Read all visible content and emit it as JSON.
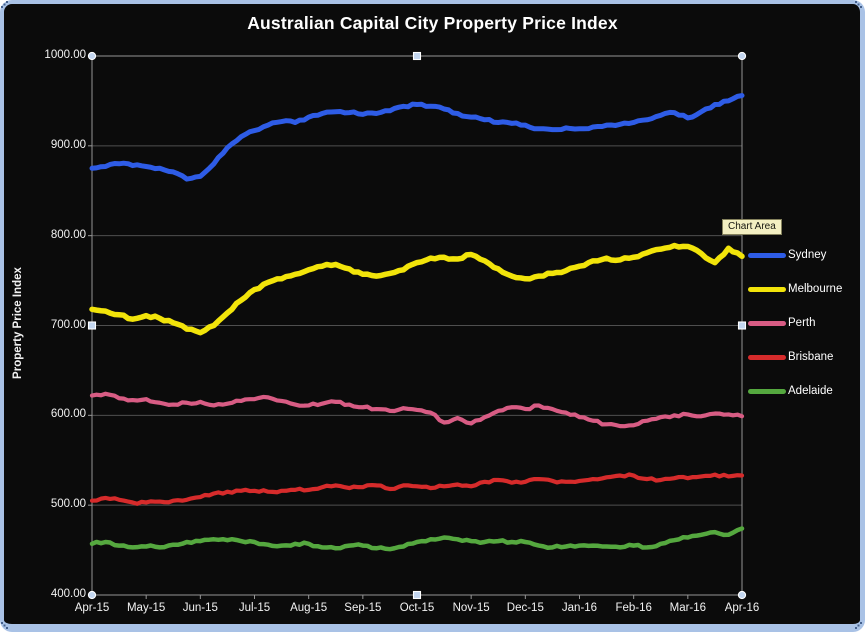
{
  "tooltip": {
    "text": "Chart Area"
  },
  "frame": {
    "border_color": "#a9c2e6",
    "background": "#0b0b0b",
    "handle_fill": "#c3d6f0",
    "handle_stroke": "#ffffff",
    "grid_color": "#4f4f4f",
    "axis_color": "#969696",
    "text_color": "#f2f2f2"
  },
  "chart_data": {
    "type": "line",
    "title": "Australian Capital City Property Price Index",
    "ylabel": "Property Price Index",
    "xlabel": "",
    "ylim": [
      400,
      1000
    ],
    "ytick_step": 100,
    "ytick_labels": [
      "1000.00",
      "900.00",
      "800.00",
      "700.00",
      "600.00",
      "500.00",
      "400.00"
    ],
    "x_categories": [
      "Apr-15",
      "May-15",
      "Jun-15",
      "Jul-15",
      "Aug-15",
      "Sep-15",
      "Oct-15",
      "Nov-15",
      "Dec-15",
      "Jan-16",
      "Feb-16",
      "Mar-16",
      "Apr-16"
    ],
    "points_per_month": 4,
    "grid": true,
    "legend_position": "right",
    "series": [
      {
        "name": "Sydney",
        "color": "#2e5ce6",
        "width": 5,
        "values": [
          875,
          877,
          880,
          878,
          877,
          875,
          871,
          863,
          866,
          880,
          898,
          910,
          917,
          923,
          927,
          926,
          932,
          936,
          938,
          937,
          935,
          936,
          939,
          944,
          946,
          944,
          941,
          936,
          932,
          929,
          926,
          925,
          923,
          919,
          918,
          920,
          919,
          921,
          923,
          924,
          926,
          929,
          934,
          937,
          931,
          938,
          946,
          950,
          956
        ]
      },
      {
        "name": "Melbourne",
        "color": "#f2e40a",
        "width": 5.5,
        "values": [
          718,
          716,
          712,
          707,
          711,
          708,
          703,
          696,
          692,
          700,
          714,
          728,
          740,
          748,
          752,
          757,
          762,
          766,
          768,
          763,
          757,
          755,
          758,
          762,
          770,
          775,
          776,
          774,
          779,
          772,
          763,
          755,
          752,
          755,
          758,
          761,
          766,
          772,
          775,
          773,
          776,
          781,
          785,
          789,
          788,
          780,
          770,
          786,
          777
        ]
      },
      {
        "name": "Perth",
        "color": "#d85c84",
        "width": 4.2,
        "values": [
          622,
          624,
          619,
          617,
          618,
          614,
          612,
          614,
          615,
          611,
          613,
          616,
          618,
          620,
          616,
          612,
          611,
          613,
          615,
          612,
          609,
          607,
          605,
          608,
          606,
          603,
          592,
          597,
          591,
          598,
          605,
          609,
          607,
          611,
          607,
          603,
          598,
          594,
          590,
          588,
          589,
          594,
          598,
          600,
          601,
          599,
          602,
          601,
          599
        ]
      },
      {
        "name": "Brisbane",
        "color": "#d62b2b",
        "width": 4.2,
        "values": [
          505,
          508,
          506,
          503,
          503,
          504,
          505,
          506,
          509,
          513,
          515,
          516,
          516,
          515,
          516,
          517,
          517,
          520,
          522,
          519,
          520,
          522,
          518,
          522,
          521,
          519,
          521,
          523,
          521,
          526,
          528,
          525,
          526,
          529,
          527,
          526,
          527,
          529,
          531,
          533,
          533,
          529,
          528,
          530,
          530,
          532,
          534,
          532,
          533
        ]
      },
      {
        "name": "Adelaide",
        "color": "#55a83f",
        "width": 4.5,
        "values": [
          457,
          459,
          455,
          453,
          454,
          453,
          456,
          459,
          460,
          462,
          461,
          460,
          459,
          456,
          455,
          457,
          457,
          453,
          452,
          455,
          455,
          452,
          451,
          454,
          459,
          462,
          464,
          462,
          460,
          459,
          460,
          459,
          459,
          455,
          453,
          454,
          455,
          455,
          454,
          453,
          455,
          453,
          457,
          461,
          464,
          467,
          470,
          467,
          474
        ]
      }
    ]
  }
}
